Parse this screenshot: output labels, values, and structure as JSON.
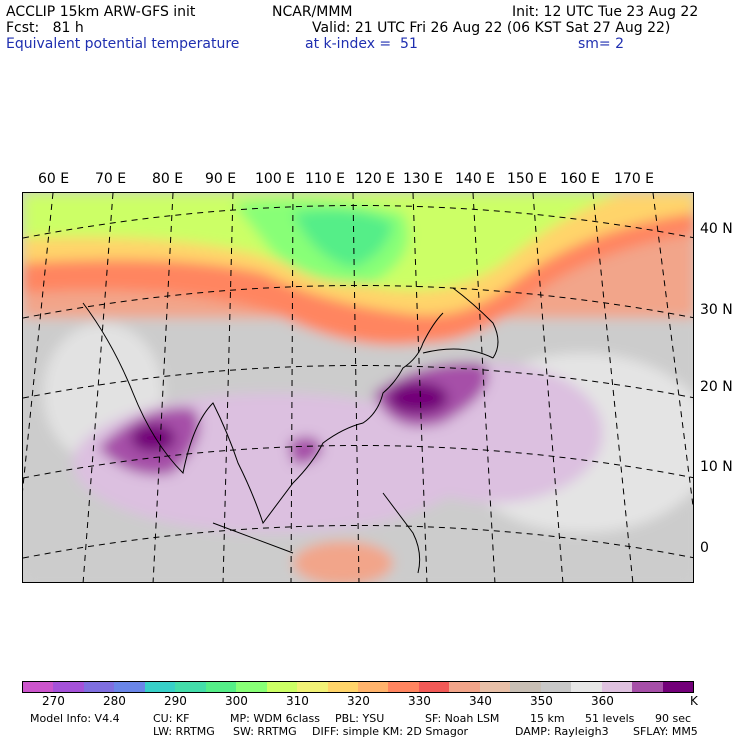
{
  "header": {
    "line1_left": "ACCLIP 15km ARW-GFS init",
    "line1_center": "NCAR/MMM",
    "line1_right": "Init: 12 UTC Tue 23 Aug 22",
    "line2_left": "Fcst:   81 h",
    "line2_right": "Valid: 21 UTC Fri 26 Aug 22 (06 KST Sat 27 Aug 22)",
    "line3_left": "Equivalent potential temperature",
    "line3_center": "at k-index =  51",
    "line3_right": "sm= 2"
  },
  "map": {
    "lon_labels": [
      "60 E",
      "70 E",
      "80 E",
      "90 E",
      "100 E",
      "110 E",
      "120 E",
      "130 E",
      "140 E",
      "150 E",
      "160 E",
      "170 E"
    ],
    "lat_labels": [
      "40 N",
      "30 N",
      "20 N",
      "10 N",
      "0"
    ]
  },
  "colorbar": {
    "colors": [
      "#cc55cc",
      "#a552d9",
      "#7f6fe0",
      "#6a86e8",
      "#38d0c8",
      "#44ddaa",
      "#55ee88",
      "#88ff77",
      "#ccff66",
      "#f2f277",
      "#ffd46a",
      "#ffb36c",
      "#ff8560",
      "#f25a57",
      "#f2a58a",
      "#e8c0a8",
      "#c8bfb5",
      "#c8c8c8",
      "#e6e6e6",
      "#dfc2e0",
      "#a64fa8",
      "#730079"
    ],
    "ticks": [
      "270",
      "280",
      "290",
      "300",
      "310",
      "320",
      "330",
      "340",
      "350",
      "360"
    ],
    "unit": "K"
  },
  "footer": {
    "line1": [
      "Model Info: V4.4",
      "CU: KF",
      "MP: WDM 6class",
      "PBL: YSU",
      "SF: Noah LSM",
      "15 km",
      "51 levels",
      "90 sec"
    ],
    "line2": [
      "LW: RRTMG",
      "SW: RRTMG",
      "DIFF: simple KM: 2D Smagor",
      "DAMP: Rayleigh3",
      "SFLAY: MM5"
    ]
  }
}
